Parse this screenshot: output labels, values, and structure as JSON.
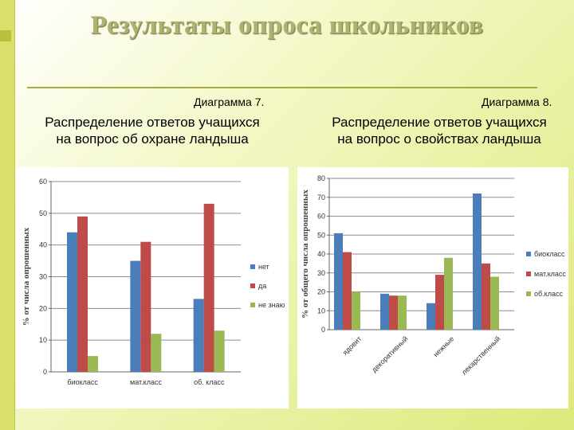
{
  "page": {
    "title": "Результаты опроса школьников"
  },
  "chart_data": [
    {
      "type": "bar",
      "figure_label": "Диаграмма 7.",
      "title": "Распределение ответов учащихся на вопрос об охране ландыша",
      "title_lines": [
        "Распределение ответов учащихся",
        "на вопрос об охране ландыша"
      ],
      "categories": [
        "биокласс",
        "мат.класс",
        "об. класс"
      ],
      "series": [
        {
          "name": "нет",
          "color": "#4a7ebb",
          "values": [
            44,
            35,
            23
          ]
        },
        {
          "name": "да",
          "color": "#be4b48",
          "values": [
            49,
            41,
            53
          ]
        },
        {
          "name": "не знаю",
          "color": "#98b954",
          "values": [
            5,
            12,
            13
          ]
        }
      ],
      "ylabel": "% от числа опрошенных",
      "xlabel": "",
      "ylim": [
        0,
        60
      ],
      "yticks": [
        "0",
        "10",
        "20",
        "30",
        "40",
        "50",
        "60"
      ],
      "grid": true,
      "legend": "right",
      "category_label_rotation": 0
    },
    {
      "type": "bar",
      "figure_label": "Диаграмма 8.",
      "title": "Распределение ответов учащихся на вопрос о свойствах ландыша",
      "title_lines": [
        "Распределение ответов учащихся",
        "на вопрос о свойствах ландыша"
      ],
      "categories": [
        "ядовит",
        "декоративный",
        "нежные",
        "лекарственный"
      ],
      "series": [
        {
          "name": "биокласс",
          "color": "#4a7ebb",
          "values": [
            51,
            19,
            14,
            72
          ]
        },
        {
          "name": "мат.класс",
          "color": "#be4b48",
          "values": [
            41,
            18,
            29,
            35
          ]
        },
        {
          "name": "об.класс",
          "color": "#98b954",
          "values": [
            20,
            18,
            38,
            28
          ]
        }
      ],
      "ylabel": "% от общего числа опрошенных",
      "xlabel": "",
      "ylim": [
        0,
        80
      ],
      "yticks": [
        "0",
        "10",
        "20",
        "30",
        "40",
        "50",
        "60",
        "70",
        "80"
      ],
      "grid": true,
      "legend": "right",
      "category_label_rotation": -45
    }
  ]
}
